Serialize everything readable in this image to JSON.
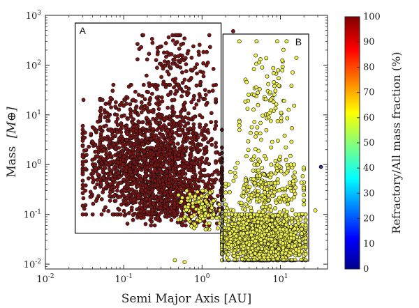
{
  "chart_data": {
    "type": "scatter",
    "xlabel": "Semi Major Axis [AU]",
    "ylabel": "Mass",
    "ylabel_unit": "[M⊕]",
    "x_scale": "log",
    "y_scale": "log",
    "xlim": [
      0.01,
      40
    ],
    "ylim": [
      0.008,
      1000
    ],
    "x_ticks": [
      0.01,
      0.1,
      1,
      10
    ],
    "y_ticks": [
      0.01,
      0.1,
      1,
      10,
      100,
      1000
    ],
    "grid": false,
    "colorbar": {
      "label": "Refractory/All mass fraction (%)",
      "min": 0,
      "max": 100,
      "ticks": [
        0,
        10,
        20,
        30,
        40,
        50,
        60,
        70,
        80,
        90,
        100
      ]
    },
    "regions": [
      {
        "label": "A",
        "x_range": [
          0.024,
          1.75
        ],
        "y_range": [
          0.042,
          700
        ]
      },
      {
        "label": "B",
        "x_range": [
          1.85,
          23
        ],
        "y_range": [
          0.0115,
          420
        ]
      }
    ],
    "series": [
      {
        "color_value": 100,
        "color": "#7a1414",
        "clusters": [
          {
            "x_range": [
              0.03,
              1.8
            ],
            "y_range": [
              0.1,
              5
            ],
            "count": 1100
          },
          {
            "x_range": [
              0.05,
              1.5
            ],
            "y_range": [
              0.5,
              40
            ],
            "count": 550
          },
          {
            "x_range": [
              0.15,
              1.4
            ],
            "y_range": [
              20,
              400
            ],
            "count": 130
          },
          {
            "x_range": [
              0.1,
              1.8
            ],
            "y_range": [
              0.06,
              0.5
            ],
            "count": 320
          },
          {
            "x_range": [
              0.03,
              0.2
            ],
            "y_range": [
              0.3,
              20
            ],
            "count": 120
          }
        ],
        "points": [
          {
            "x": 0.42,
            "y": 400
          },
          {
            "x": 2.5,
            "y": 480
          },
          {
            "x": 0.033,
            "y": 0.1
          }
        ]
      },
      {
        "color_value": 60,
        "color": "#f0f04a",
        "clusters": [
          {
            "x_range": [
              1.8,
              21
            ],
            "y_range": [
              0.012,
              0.1
            ],
            "count": 1500
          },
          {
            "x_range": [
              2,
              20
            ],
            "y_range": [
              0.08,
              1.5
            ],
            "count": 260
          },
          {
            "x_range": [
              3,
              15
            ],
            "y_range": [
              1,
              300
            ],
            "count": 110
          },
          {
            "x_range": [
              0.5,
              2
            ],
            "y_range": [
              0.05,
              0.3
            ],
            "count": 140
          }
        ],
        "points": [
          {
            "x": 0.45,
            "y": 0.012
          },
          {
            "x": 0.6,
            "y": 0.011
          },
          {
            "x": 12,
            "y": 300
          },
          {
            "x": 16,
            "y": 140
          },
          {
            "x": 28,
            "y": 0.12
          }
        ]
      },
      {
        "color_value": 5,
        "color": "#2a2a8a",
        "points": [
          {
            "x": 33,
            "y": 0.9
          }
        ]
      }
    ]
  }
}
